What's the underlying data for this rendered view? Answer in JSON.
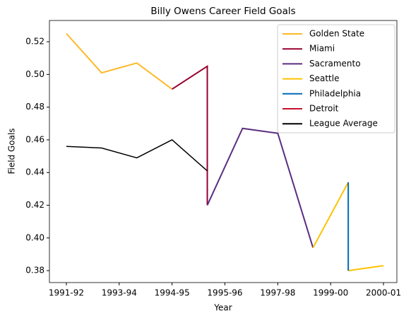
{
  "chart_data": {
    "type": "line",
    "title": "Billy Owens Career Field Goals",
    "xlabel": "Year",
    "ylabel": "Field Goals",
    "series": [
      {
        "name": "Golden State",
        "color": "#fdb927",
        "x": [
          0,
          1,
          2,
          3
        ],
        "values": [
          0.525,
          0.501,
          0.507,
          0.491
        ]
      },
      {
        "name": "Miami",
        "color": "#98002e",
        "x": [
          3,
          4,
          4
        ],
        "values": [
          0.491,
          0.505,
          0.42
        ]
      },
      {
        "name": "Sacramento",
        "color": "#5a2d81",
        "x": [
          4,
          5,
          6,
          7
        ],
        "values": [
          0.42,
          0.467,
          0.464,
          0.394
        ]
      },
      {
        "name": "Seattle",
        "color": "#ffc200",
        "x": [
          7,
          8,
          null,
          8,
          9
        ],
        "values": [
          0.394,
          0.434,
          null,
          0.38,
          0.383
        ]
      },
      {
        "name": "Philadelphia",
        "color": "#006bb6",
        "x": [
          8,
          8
        ],
        "values": [
          0.434,
          0.38
        ]
      },
      {
        "name": "Detroit",
        "color": "#c8102e",
        "x": [
          9
        ],
        "values": [
          0.383
        ]
      },
      {
        "name": "League Average",
        "color": "#000000",
        "x": [
          0,
          1,
          2,
          3,
          4
        ],
        "values": [
          0.456,
          0.455,
          0.449,
          0.46,
          0.441
        ]
      }
    ],
    "xlim": [
      -0.48,
      9.38
    ],
    "xticks": [
      {
        "value": 0,
        "label": "1991-92"
      },
      {
        "value": 1.5,
        "label": "1993-94"
      },
      {
        "value": 3,
        "label": "1994-95"
      },
      {
        "value": 4.5,
        "label": "1995-96"
      },
      {
        "value": 6,
        "label": "1997-98"
      },
      {
        "value": 7.5,
        "label": "1999-00"
      },
      {
        "value": 9,
        "label": "2000-01"
      }
    ],
    "ylim": [
      0.3727,
      0.533
    ],
    "yticks": [
      0.38,
      {
        "value": 0.4,
        "label": "0.40"
      },
      0.42,
      0.44,
      0.46,
      0.48,
      {
        "value": 0.5,
        "label": "0.50"
      },
      0.52
    ],
    "legend": "upper right"
  }
}
